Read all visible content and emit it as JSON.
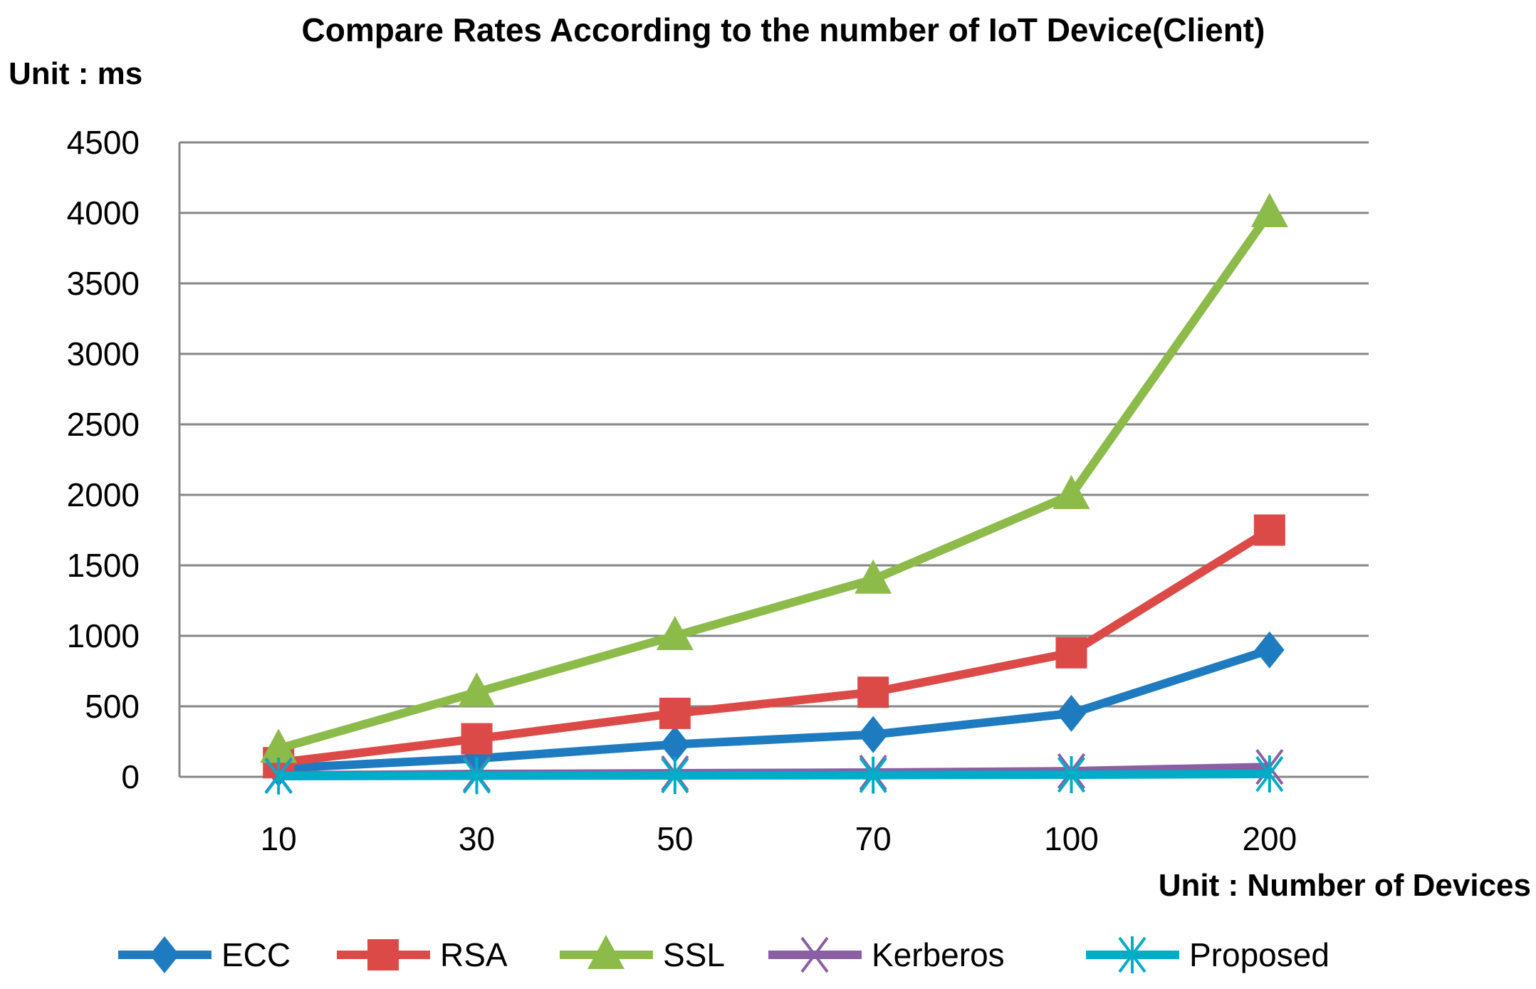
{
  "chart_data": {
    "type": "line",
    "title": "Compare Rates According  to the number of IoT Device(Client)",
    "ylabel": "Unit  : ms",
    "xlabel": "Unit  : Number of Devices",
    "categories": [
      "10",
      "30",
      "50",
      "70",
      "100",
      "200"
    ],
    "ylim": [
      0,
      4500
    ],
    "yticks": [
      0,
      500,
      1000,
      1500,
      2000,
      2500,
      3000,
      3500,
      4000,
      4500
    ],
    "grid": true,
    "legend_position": "bottom",
    "series": [
      {
        "name": "ECC",
        "color": "#1f7bbf",
        "marker": "diamond",
        "values": [
          60,
          130,
          230,
          300,
          450,
          900
        ]
      },
      {
        "name": "RSA",
        "color": "#dc4a48",
        "marker": "square",
        "values": [
          100,
          270,
          450,
          600,
          880,
          1750
        ]
      },
      {
        "name": "SSL",
        "color": "#8cbb4a",
        "marker": "triangle",
        "values": [
          200,
          600,
          1000,
          1400,
          2000,
          4000
        ]
      },
      {
        "name": "Kerberos",
        "color": "#8a5fa3",
        "marker": "x",
        "values": [
          10,
          20,
          25,
          30,
          40,
          70
        ]
      },
      {
        "name": "Proposed",
        "color": "#00acc8",
        "marker": "star",
        "values": [
          5,
          8,
          10,
          12,
          15,
          20
        ]
      }
    ]
  }
}
